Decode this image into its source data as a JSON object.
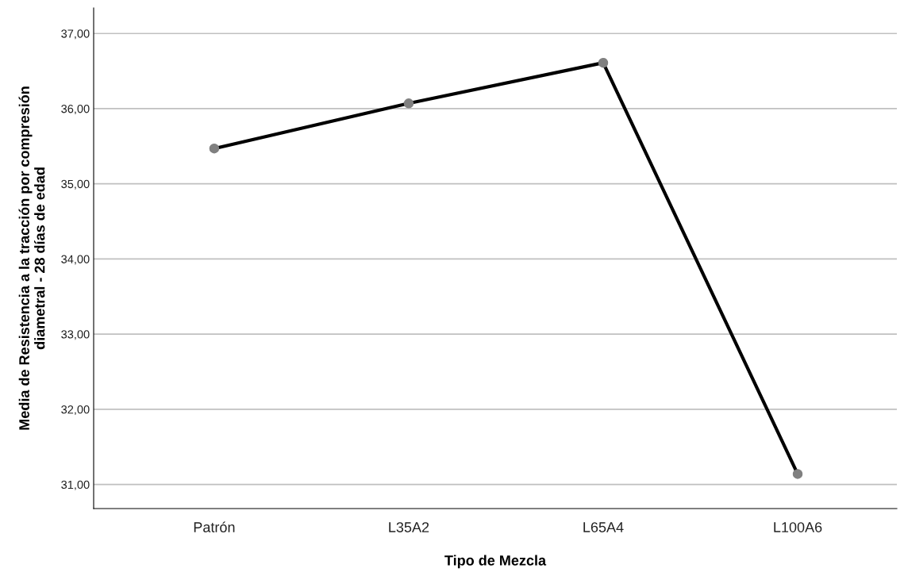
{
  "chart_data": {
    "type": "line",
    "xlabel": "Tipo de Mezcla",
    "ylabel": "Media de Resistencia a la tracción por compresión\ndiametral - 28 días de edad",
    "categories": [
      "Patrón",
      "L35A2",
      "L65A4",
      "L100A6"
    ],
    "series": [
      {
        "color": "#000000",
        "values": [
          35.47,
          36.07,
          36.61,
          31.14
        ]
      }
    ],
    "marker": "circle",
    "line_style": "solid",
    "ylim": [
      30.68,
      37.34
    ],
    "yticks": [
      {
        "value": 31,
        "label": "31,00"
      },
      {
        "value": 32,
        "label": "32,00"
      },
      {
        "value": 33,
        "label": "33,00"
      },
      {
        "value": 34,
        "label": "34,00"
      },
      {
        "value": 35,
        "label": "35,00"
      },
      {
        "value": 36,
        "label": "36,00"
      },
      {
        "value": 37,
        "label": "37,00"
      }
    ],
    "grid": "y"
  }
}
